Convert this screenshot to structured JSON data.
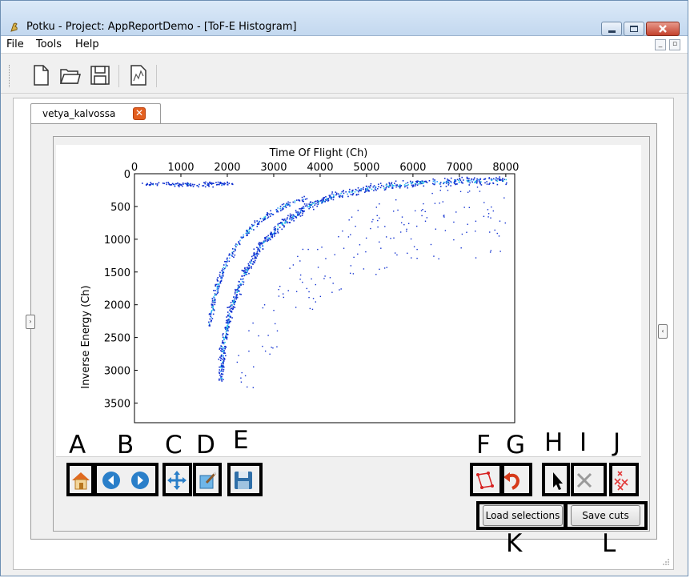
{
  "window": {
    "title": "Potku - Project: AppReportDemo - [ToF-E Histogram]"
  },
  "menu": {
    "items": [
      "File",
      "Tools",
      "Help"
    ]
  },
  "toolbar": {
    "buttons": [
      "new-file-icon",
      "open-folder-icon",
      "save-icon",
      "histogram-icon"
    ]
  },
  "tab": {
    "label": "vetya_kalvossa",
    "close_glyph": "✕"
  },
  "plot": {
    "title": "Time Of Flight (Ch)",
    "ylabel": "Inverse Energy (Ch)",
    "x_ticks": [
      "0",
      "1000",
      "2000",
      "3000",
      "4000",
      "5000",
      "6000",
      "7000",
      "8000"
    ],
    "y_ticks": [
      "0",
      "500",
      "1000",
      "1500",
      "2000",
      "2500",
      "3000",
      "3500"
    ]
  },
  "chart_data": {
    "type": "heatmap",
    "title": "Time Of Flight (Ch)",
    "xlabel": "Time Of Flight (Ch)",
    "ylabel": "Inverse Energy (Ch)",
    "xlim": [
      0,
      8192
    ],
    "ylim": [
      3800,
      0
    ],
    "x_axis_position": "top",
    "colormap": "jet",
    "series": [
      {
        "name": "",
        "curve": [
          [
            1850,
            3150
          ],
          [
            1900,
            2600
          ],
          [
            2050,
            2100
          ],
          [
            2300,
            1600
          ],
          [
            2650,
            1150
          ],
          [
            3100,
            800
          ],
          [
            3650,
            520
          ],
          [
            4300,
            330
          ],
          [
            5100,
            210
          ],
          [
            6000,
            140
          ],
          [
            7000,
            110
          ],
          [
            8000,
            95
          ]
        ]
      },
      {
        "name": "",
        "curve": [
          [
            1600,
            2300
          ],
          [
            1700,
            1900
          ],
          [
            1900,
            1450
          ],
          [
            2200,
            1050
          ],
          [
            2600,
            750
          ],
          [
            3100,
            520
          ],
          [
            3700,
            360
          ]
        ]
      },
      {
        "name": "",
        "curve": [
          [
            200,
            150
          ],
          [
            1000,
            160
          ],
          [
            1600,
            155
          ],
          [
            2100,
            140
          ]
        ]
      }
    ]
  },
  "annotations": [
    "A",
    "B",
    "C",
    "D",
    "E",
    "F",
    "G",
    "H",
    "I",
    "J",
    "K",
    "L"
  ],
  "nav": {
    "left_buttons": [
      "home-icon",
      "back-icon",
      "forward-icon",
      "pan-icon",
      "subplot-config-icon",
      "save-figure-icon"
    ],
    "right_buttons": [
      "selection-tool-icon",
      "undo-icon",
      "select-cursor-icon",
      "remove-selection-icon",
      "remove-all-selections-icon"
    ],
    "load_selections": "Load selections",
    "save_cuts": "Save cuts"
  },
  "side": {
    "left_arrow": "›",
    "right_arrow": "‹"
  }
}
